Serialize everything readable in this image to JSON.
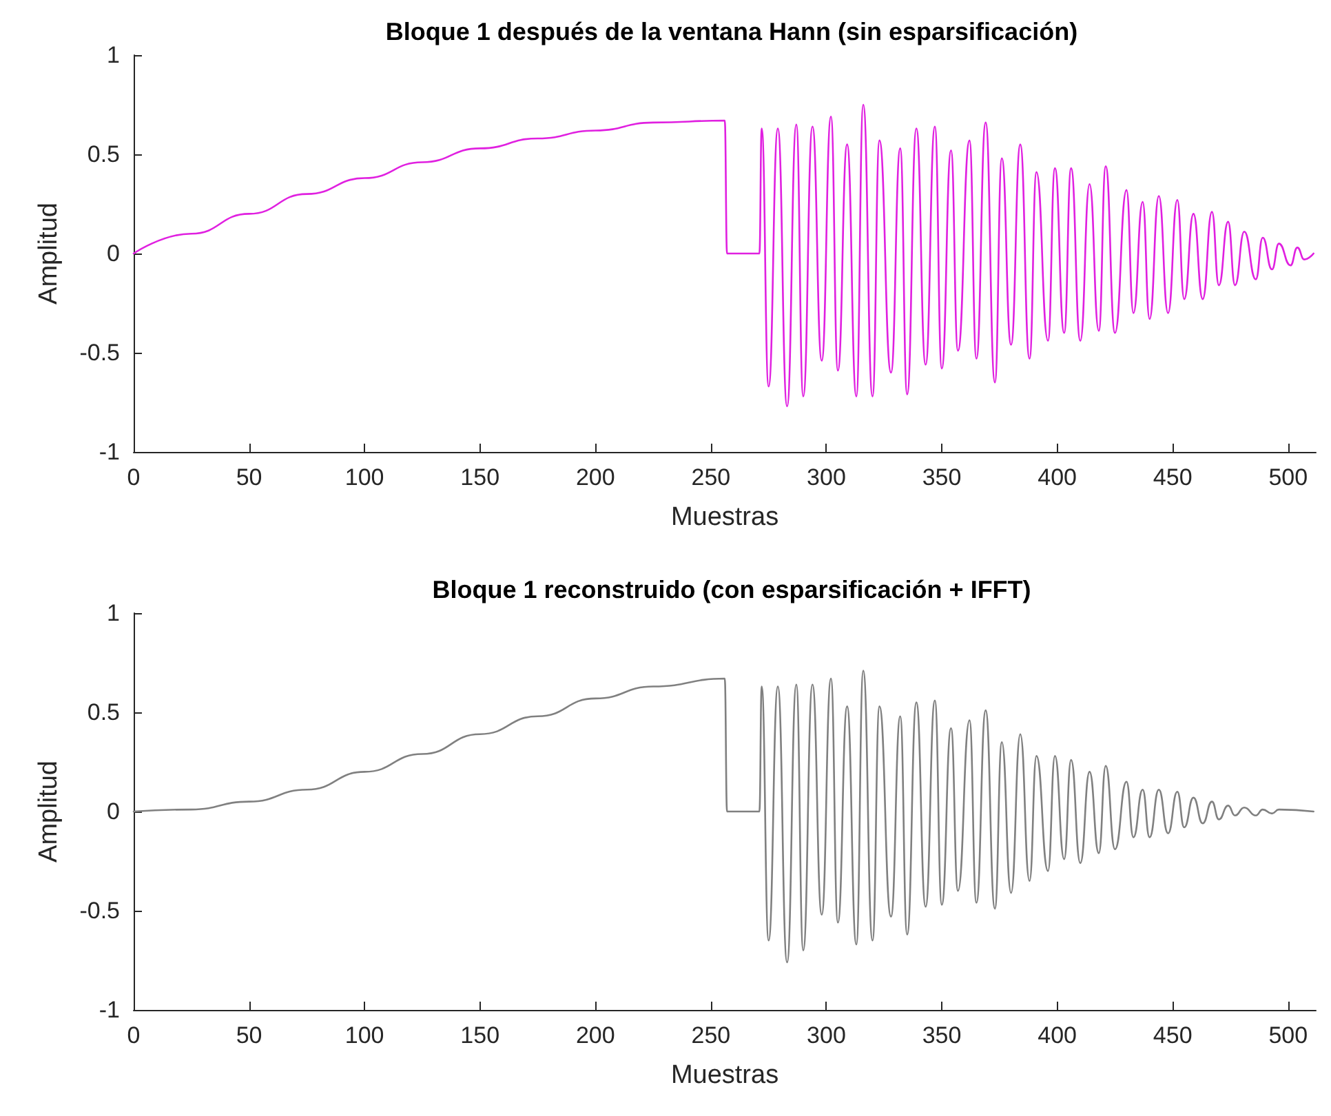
{
  "chart_data": [
    {
      "type": "line",
      "title": "Bloque 1 después de la ventana Hann (sin esparsificación)",
      "xlabel": "Muestras",
      "ylabel": "Amplitud",
      "xlim": [
        0,
        512
      ],
      "xticks": [
        0,
        50,
        100,
        150,
        200,
        250,
        300,
        350,
        400,
        450,
        500
      ],
      "ylim": [
        -1,
        1
      ],
      "yticks": [
        -1,
        -0.5,
        0,
        0.5,
        1
      ],
      "grid": false,
      "marker": "none",
      "line_style": "solid",
      "series": [
        {
          "color": "#e020e0",
          "x": [
            0,
            25,
            50,
            75,
            100,
            125,
            150,
            175,
            200,
            225,
            256,
            257,
            271,
            272,
            275,
            279,
            283,
            287,
            290,
            294,
            298,
            302,
            305,
            309,
            313,
            316,
            320,
            323,
            328,
            332,
            335,
            339,
            343,
            347,
            350,
            354,
            357,
            362,
            365,
            369,
            373,
            376,
            380,
            384,
            388,
            391,
            396,
            399,
            403,
            406,
            410,
            414,
            418,
            421,
            425,
            430,
            433,
            437,
            440,
            444,
            448,
            452,
            455,
            459,
            463,
            467,
            470,
            474,
            477,
            481,
            486,
            489,
            493,
            496,
            501,
            504,
            507,
            511
          ],
          "values": [
            0,
            0.1,
            0.2,
            0.3,
            0.38,
            0.46,
            0.53,
            0.58,
            0.62,
            0.66,
            0.67,
            0,
            0,
            0.63,
            -0.67,
            0.63,
            -0.77,
            0.65,
            -0.72,
            0.64,
            -0.54,
            0.69,
            -0.59,
            0.55,
            -0.72,
            0.75,
            -0.72,
            0.57,
            -0.6,
            0.53,
            -0.71,
            0.63,
            -0.56,
            0.64,
            -0.58,
            0.52,
            -0.49,
            0.57,
            -0.53,
            0.66,
            -0.65,
            0.48,
            -0.46,
            0.55,
            -0.53,
            0.41,
            -0.44,
            0.43,
            -0.4,
            0.43,
            -0.44,
            0.35,
            -0.39,
            0.44,
            -0.4,
            0.32,
            -0.3,
            0.26,
            -0.33,
            0.29,
            -0.3,
            0.27,
            -0.23,
            0.2,
            -0.23,
            0.21,
            -0.16,
            0.16,
            -0.16,
            0.11,
            -0.13,
            0.08,
            -0.08,
            0.05,
            -0.06,
            0.03,
            -0.03,
            0
          ]
        }
      ]
    },
    {
      "type": "line",
      "title": "Bloque 1 reconstruido (con esparsificación + IFFT)",
      "xlabel": "Muestras",
      "ylabel": "Amplitud",
      "xlim": [
        0,
        512
      ],
      "xticks": [
        0,
        50,
        100,
        150,
        200,
        250,
        300,
        350,
        400,
        450,
        500
      ],
      "ylim": [
        -1,
        1
      ],
      "yticks": [
        -1,
        -0.5,
        0,
        0.5,
        1
      ],
      "grid": false,
      "marker": "none",
      "line_style": "solid",
      "series": [
        {
          "color": "#808080",
          "x": [
            0,
            25,
            50,
            75,
            100,
            125,
            150,
            175,
            200,
            225,
            256,
            257,
            271,
            272,
            275,
            279,
            283,
            287,
            290,
            294,
            298,
            302,
            305,
            309,
            313,
            316,
            320,
            323,
            328,
            332,
            335,
            339,
            343,
            347,
            350,
            354,
            357,
            362,
            365,
            369,
            373,
            376,
            380,
            384,
            388,
            391,
            396,
            399,
            403,
            406,
            410,
            414,
            418,
            421,
            425,
            430,
            433,
            437,
            440,
            444,
            448,
            452,
            455,
            459,
            463,
            467,
            470,
            474,
            477,
            481,
            486,
            489,
            493,
            496,
            511
          ],
          "values": [
            0,
            0.01,
            0.05,
            0.11,
            0.2,
            0.29,
            0.39,
            0.48,
            0.57,
            0.63,
            0.67,
            0,
            0,
            0.63,
            -0.65,
            0.63,
            -0.76,
            0.64,
            -0.7,
            0.64,
            -0.52,
            0.67,
            -0.56,
            0.53,
            -0.67,
            0.71,
            -0.65,
            0.53,
            -0.53,
            0.48,
            -0.62,
            0.55,
            -0.48,
            0.56,
            -0.47,
            0.42,
            -0.4,
            0.46,
            -0.46,
            0.51,
            -0.49,
            0.35,
            -0.41,
            0.39,
            -0.35,
            0.28,
            -0.3,
            0.28,
            -0.24,
            0.26,
            -0.26,
            0.2,
            -0.21,
            0.23,
            -0.19,
            0.15,
            -0.13,
            0.11,
            -0.13,
            0.11,
            -0.11,
            0.1,
            -0.08,
            0.07,
            -0.06,
            0.05,
            -0.04,
            0.03,
            -0.02,
            0.02,
            -0.02,
            0.01,
            -0.01,
            0.01,
            0
          ]
        }
      ]
    }
  ]
}
